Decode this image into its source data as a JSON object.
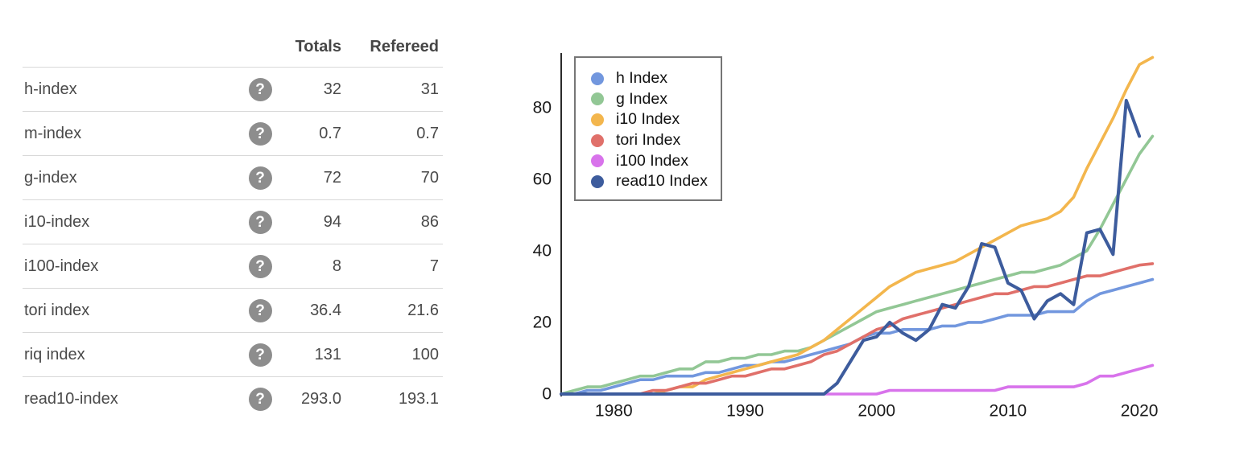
{
  "table": {
    "headers": {
      "totals": "Totals",
      "refereed": "Refereed"
    },
    "help_glyph": "?",
    "rows": [
      {
        "label": "h-index",
        "totals": "32",
        "refereed": "31"
      },
      {
        "label": "m-index",
        "totals": "0.7",
        "refereed": "0.7"
      },
      {
        "label": "g-index",
        "totals": "72",
        "refereed": "70"
      },
      {
        "label": "i10-index",
        "totals": "94",
        "refereed": "86"
      },
      {
        "label": "i100-index",
        "totals": "8",
        "refereed": "7"
      },
      {
        "label": "tori index",
        "totals": "36.4",
        "refereed": "21.6"
      },
      {
        "label": "riq index",
        "totals": "131",
        "refereed": "100"
      },
      {
        "label": "read10-index",
        "totals": "293.0",
        "refereed": "193.1"
      }
    ]
  },
  "chart_data": {
    "type": "line",
    "title": "",
    "xlabel": "",
    "ylabel": "",
    "grid": false,
    "legend_position": "top-left",
    "xlim": [
      1976,
      2022
    ],
    "ylim": [
      0,
      95
    ],
    "xticks": [
      "1980",
      "1990",
      "2000",
      "2010",
      "2020"
    ],
    "yticks": [
      0,
      20,
      40,
      60,
      80
    ],
    "x": [
      1976,
      1977,
      1978,
      1979,
      1980,
      1981,
      1982,
      1983,
      1984,
      1985,
      1986,
      1987,
      1988,
      1989,
      1990,
      1991,
      1992,
      1993,
      1994,
      1995,
      1996,
      1997,
      1998,
      1999,
      2000,
      2001,
      2002,
      2003,
      2004,
      2005,
      2006,
      2007,
      2008,
      2009,
      2010,
      2011,
      2012,
      2013,
      2014,
      2015,
      2016,
      2017,
      2018,
      2019,
      2020,
      2021
    ],
    "series": [
      {
        "name": "h Index",
        "color": "#7297DE",
        "values": [
          0,
          0,
          1,
          1,
          2,
          3,
          4,
          4,
          5,
          5,
          5,
          6,
          6,
          7,
          8,
          8,
          9,
          9,
          10,
          11,
          12,
          13,
          14,
          16,
          17,
          17,
          18,
          18,
          18,
          19,
          19,
          20,
          20,
          21,
          22,
          22,
          22,
          23,
          23,
          23,
          26,
          28,
          29,
          30,
          31,
          32
        ]
      },
      {
        "name": "g Index",
        "color": "#92C795",
        "values": [
          0,
          1,
          2,
          2,
          3,
          4,
          5,
          5,
          6,
          7,
          7,
          9,
          9,
          10,
          10,
          11,
          11,
          12,
          12,
          13,
          15,
          17,
          19,
          21,
          23,
          24,
          25,
          26,
          27,
          28,
          29,
          30,
          31,
          32,
          33,
          34,
          34,
          35,
          36,
          38,
          40,
          46,
          53,
          60,
          67,
          72
        ]
      },
      {
        "name": "i10 Index",
        "color": "#F3B64D",
        "values": [
          0,
          0,
          0,
          0,
          0,
          0,
          0,
          0,
          1,
          2,
          2,
          4,
          5,
          6,
          7,
          8,
          9,
          10,
          11,
          13,
          15,
          18,
          21,
          24,
          27,
          30,
          32,
          34,
          35,
          36,
          37,
          39,
          41,
          43,
          45,
          47,
          48,
          49,
          51,
          55,
          63,
          70,
          77,
          85,
          92,
          94
        ]
      },
      {
        "name": "tori Index",
        "color": "#E0706A",
        "values": [
          0,
          0,
          0,
          0,
          0,
          0,
          0,
          1,
          1,
          2,
          3,
          3,
          4,
          5,
          5,
          6,
          7,
          7,
          8,
          9,
          11,
          12,
          14,
          16,
          18,
          19,
          21,
          22,
          23,
          24,
          25,
          26,
          27,
          28,
          28,
          29,
          30,
          30,
          31,
          32,
          33,
          33,
          34,
          35,
          36,
          36.4
        ]
      },
      {
        "name": "i100 Index",
        "color": "#D873EB",
        "values": [
          0,
          0,
          0,
          0,
          0,
          0,
          0,
          0,
          0,
          0,
          0,
          0,
          0,
          0,
          0,
          0,
          0,
          0,
          0,
          0,
          0,
          0,
          0,
          0,
          0,
          1,
          1,
          1,
          1,
          1,
          1,
          1,
          1,
          1,
          2,
          2,
          2,
          2,
          2,
          2,
          3,
          5,
          5,
          6,
          7,
          8
        ]
      },
      {
        "name": "read10 Index",
        "color": "#3D5C9D",
        "values": [
          0,
          0,
          0,
          0,
          0,
          0,
          0,
          0,
          0,
          0,
          0,
          0,
          0,
          0,
          0,
          0,
          0,
          0,
          0,
          0,
          0,
          3,
          9,
          15,
          16,
          20,
          17,
          15,
          18,
          25,
          24,
          30,
          42,
          41,
          31,
          29,
          21,
          26,
          28,
          25,
          45,
          46,
          39,
          82,
          72,
          null
        ]
      }
    ]
  }
}
